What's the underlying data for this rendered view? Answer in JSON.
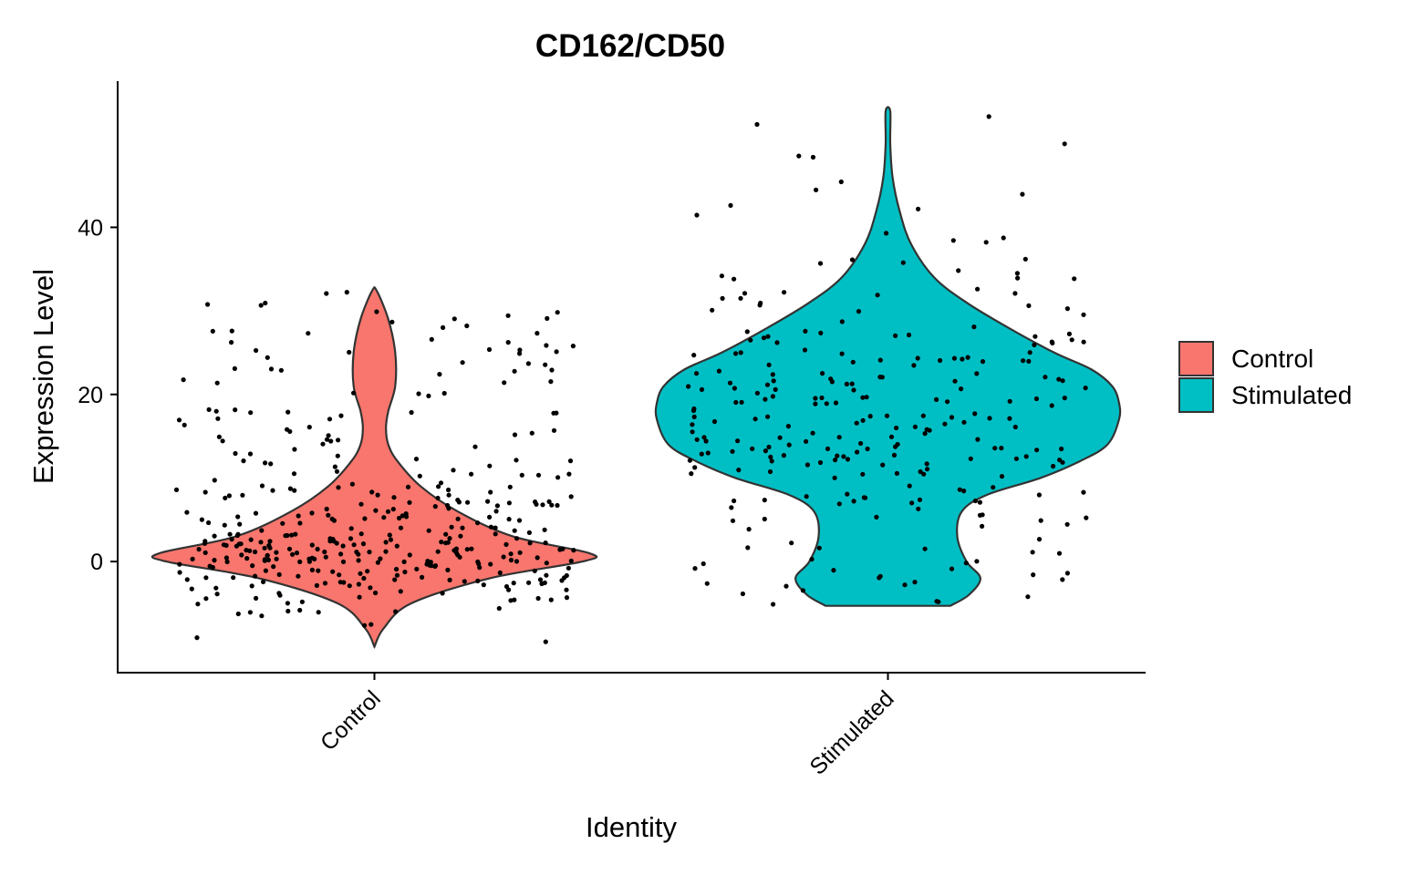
{
  "chart_data": {
    "type": "violin",
    "title": "CD162/CD50",
    "xlabel": "Identity",
    "ylabel": "Expression Level",
    "categories": [
      "Control",
      "Stimulated"
    ],
    "yticks": [
      0,
      20,
      40
    ],
    "ylim": [
      -13.3,
      57.5
    ],
    "colors": {
      "Control": "#F8766D",
      "Stimulated": "#00BFC4",
      "outline": "#333333",
      "points": "#000000"
    },
    "legend": {
      "position": "right",
      "entries": [
        "Control",
        "Stimulated"
      ]
    },
    "series": [
      {
        "name": "Control",
        "range": [
          -10.2,
          32.4
        ],
        "density_y": [
          -10.2,
          -8,
          -5,
          -2,
          0,
          1,
          3,
          6,
          9,
          12,
          14,
          16,
          18,
          21,
          25,
          29,
          32.4
        ],
        "density_w": [
          0,
          0.04,
          0.16,
          0.5,
          0.9,
          0.93,
          0.6,
          0.36,
          0.2,
          0.1,
          0.06,
          0.05,
          0.06,
          0.09,
          0.09,
          0.06,
          0.01
        ],
        "point_count": 380
      },
      {
        "name": "Stimulated",
        "range": [
          -5.3,
          53.9
        ],
        "density_y": [
          -5.3,
          -4,
          -2,
          0,
          3,
          6,
          8,
          10,
          12,
          14,
          17,
          19,
          21,
          23,
          25,
          28,
          31,
          34,
          38,
          42,
          46,
          50,
          53.9
        ],
        "density_w": [
          0.27,
          0.35,
          0.4,
          0.34,
          0.3,
          0.32,
          0.43,
          0.66,
          0.83,
          0.95,
          1.0,
          1.0,
          0.97,
          0.88,
          0.72,
          0.52,
          0.34,
          0.2,
          0.1,
          0.05,
          0.02,
          0.01,
          0.01
        ],
        "point_count": 260
      }
    ]
  }
}
